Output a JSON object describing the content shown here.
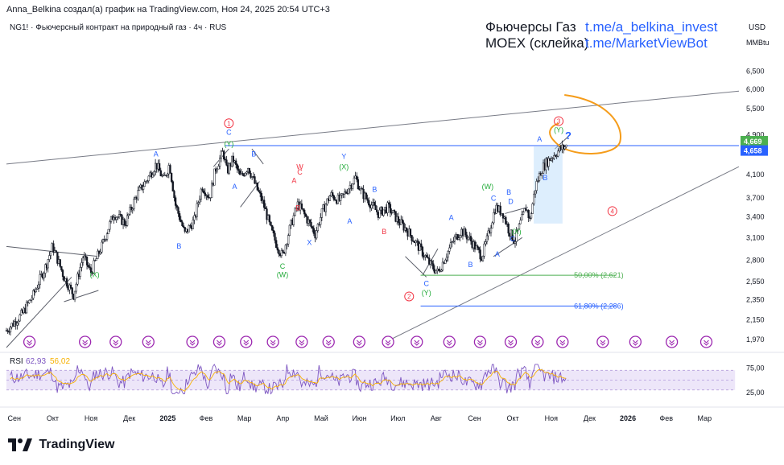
{
  "header": {
    "text": "Anna_Belkina создал(а) график на TradingView.com, Ноя 24, 2025 20:54 UTC+3"
  },
  "symbol": {
    "text": "NG1! · Фьючерсный контракт на природный газ · 4ч · RUS"
  },
  "title": {
    "line1": "Фьючерсы Газ",
    "line2": "MOEX (склейка)",
    "link1": "t.me/a_belkina_invest",
    "link2": "t.me/MarketViewBot"
  },
  "scale": {
    "currency": "USD",
    "unit": "MMBtu"
  },
  "brand": {
    "name": "TradingView"
  },
  "colors": {
    "price": "#131722",
    "wave_blue": "#2962ff",
    "wave_green": "#22ab39",
    "wave_red": "#f23645",
    "rsi": "#7e57c2",
    "rsi_ma": "#f7b100",
    "fib": "#2962ff",
    "fib_green": "#4caf50",
    "ellipse": "#f59c1a",
    "trendline": "#787b86",
    "resistance": "#2962ff"
  },
  "chart_data": {
    "type": "candlestick",
    "price_axis": {
      "scale": "log",
      "ticks": [
        "6,500",
        "6,000",
        "5,500",
        "4,900",
        "4,100",
        "3,700",
        "3,400",
        "3,100",
        "2,800",
        "2,550",
        "2,350",
        "2,150",
        "1,970"
      ],
      "tick_values": [
        6.5,
        6.0,
        5.5,
        4.9,
        4.1,
        3.7,
        3.4,
        3.1,
        2.8,
        2.55,
        2.35,
        2.15,
        1.97
      ],
      "range": [
        1.9,
        7.2
      ]
    },
    "time_axis": {
      "labels": [
        "Сен",
        "Окт",
        "Ноя",
        "Дек",
        "2025",
        "Фев",
        "Мар",
        "Апр",
        "Май",
        "Июн",
        "Июл",
        "Авг",
        "Сен",
        "Окт",
        "Ноя",
        "Дек",
        "2026",
        "Фев",
        "Мар"
      ],
      "bold": [
        "2025",
        "2026"
      ],
      "months_index": [
        0,
        1,
        2,
        3,
        4,
        5,
        6,
        7,
        8,
        9,
        10,
        11,
        12,
        13,
        14,
        15,
        16,
        17,
        18
      ],
      "range_months": [
        -0.1,
        19.0
      ]
    },
    "price_path": [
      {
        "t": -0.1,
        "v": 2.05
      },
      {
        "t": 0.3,
        "v": 2.2
      },
      {
        "t": 0.6,
        "v": 2.4
      },
      {
        "t": 0.9,
        "v": 2.7
      },
      {
        "t": 1.1,
        "v": 2.98
      },
      {
        "t": 1.4,
        "v": 2.6
      },
      {
        "t": 1.65,
        "v": 2.4
      },
      {
        "t": 1.9,
        "v": 2.85
      },
      {
        "t": 2.1,
        "v": 2.65
      },
      {
        "t": 2.4,
        "v": 3.0
      },
      {
        "t": 2.7,
        "v": 3.45
      },
      {
        "t": 3.0,
        "v": 3.3
      },
      {
        "t": 3.3,
        "v": 3.75
      },
      {
        "t": 3.6,
        "v": 4.05
      },
      {
        "t": 3.8,
        "v": 4.3
      },
      {
        "t": 4.0,
        "v": 4.0
      },
      {
        "t": 4.15,
        "v": 4.3
      },
      {
        "t": 4.3,
        "v": 3.6
      },
      {
        "t": 4.55,
        "v": 3.15
      },
      {
        "t": 4.8,
        "v": 3.35
      },
      {
        "t": 5.0,
        "v": 3.9
      },
      {
        "t": 5.2,
        "v": 3.7
      },
      {
        "t": 5.35,
        "v": 4.2
      },
      {
        "t": 5.55,
        "v": 4.55
      },
      {
        "t": 5.65,
        "v": 4.15
      },
      {
        "t": 5.8,
        "v": 4.4
      },
      {
        "t": 6.0,
        "v": 4.05
      },
      {
        "t": 6.2,
        "v": 4.25
      },
      {
        "t": 6.4,
        "v": 3.9
      },
      {
        "t": 6.6,
        "v": 3.6
      },
      {
        "t": 6.8,
        "v": 3.2
      },
      {
        "t": 6.95,
        "v": 3.0
      },
      {
        "t": 7.1,
        "v": 2.85
      },
      {
        "t": 7.3,
        "v": 3.25
      },
      {
        "t": 7.5,
        "v": 3.6
      },
      {
        "t": 7.75,
        "v": 3.35
      },
      {
        "t": 7.95,
        "v": 3.15
      },
      {
        "t": 8.15,
        "v": 3.5
      },
      {
        "t": 8.35,
        "v": 3.75
      },
      {
        "t": 8.6,
        "v": 3.65
      },
      {
        "t": 8.8,
        "v": 3.85
      },
      {
        "t": 9.0,
        "v": 4.05
      },
      {
        "t": 9.15,
        "v": 3.8
      },
      {
        "t": 9.4,
        "v": 3.6
      },
      {
        "t": 9.6,
        "v": 3.45
      },
      {
        "t": 9.85,
        "v": 3.55
      },
      {
        "t": 10.1,
        "v": 3.35
      },
      {
        "t": 10.35,
        "v": 3.2
      },
      {
        "t": 10.55,
        "v": 3.05
      },
      {
        "t": 10.75,
        "v": 2.9
      },
      {
        "t": 10.95,
        "v": 2.75
      },
      {
        "t": 11.15,
        "v": 2.65
      },
      {
        "t": 11.35,
        "v": 2.85
      },
      {
        "t": 11.55,
        "v": 3.05
      },
      {
        "t": 11.75,
        "v": 3.2
      },
      {
        "t": 11.95,
        "v": 3.1
      },
      {
        "t": 12.15,
        "v": 2.95
      },
      {
        "t": 12.3,
        "v": 2.85
      },
      {
        "t": 12.45,
        "v": 3.1
      },
      {
        "t": 12.65,
        "v": 3.55
      },
      {
        "t": 12.85,
        "v": 3.45
      },
      {
        "t": 13.0,
        "v": 3.2
      },
      {
        "t": 13.15,
        "v": 3.05
      },
      {
        "t": 13.3,
        "v": 3.3
      },
      {
        "t": 13.45,
        "v": 3.55
      },
      {
        "t": 13.55,
        "v": 3.35
      },
      {
        "t": 13.7,
        "v": 3.9
      },
      {
        "t": 13.85,
        "v": 4.2
      },
      {
        "t": 14.0,
        "v": 4.35
      },
      {
        "t": 14.2,
        "v": 4.5
      },
      {
        "t": 14.35,
        "v": 4.6
      },
      {
        "t": 14.5,
        "v": 4.66
      }
    ],
    "levels": [
      {
        "name": "resistance",
        "value": 4.669,
        "label": "4,669",
        "color": "#4caf50"
      },
      {
        "name": "last-price",
        "value": 4.658,
        "label": "4,658",
        "color": "#2962ff"
      }
    ],
    "fib_levels": [
      {
        "label": "50,00% (2,621)",
        "value": 2.621
      },
      {
        "label": "61,80% (2,286)",
        "value": 2.286
      }
    ],
    "wave_labels": [
      {
        "text": "(X)",
        "t": 2.2,
        "v": 2.6,
        "color": "green"
      },
      {
        "text": "A",
        "t": 3.8,
        "v": 4.45,
        "color": "blue"
      },
      {
        "text": "B",
        "t": 4.4,
        "v": 2.95,
        "color": "blue"
      },
      {
        "text": "1",
        "t": 5.7,
        "v": 5.1,
        "color": "red",
        "circled": true
      },
      {
        "text": "C",
        "t": 5.7,
        "v": 4.9,
        "color": "blue"
      },
      {
        "text": "(Y)",
        "t": 5.7,
        "v": 4.65,
        "color": "green"
      },
      {
        "text": "B",
        "t": 6.35,
        "v": 4.45,
        "color": "blue"
      },
      {
        "text": "A",
        "t": 5.85,
        "v": 3.85,
        "color": "blue"
      },
      {
        "text": "C",
        "t": 7.1,
        "v": 2.7,
        "color": "green"
      },
      {
        "text": "(W)",
        "t": 7.1,
        "v": 2.6,
        "color": "green"
      },
      {
        "text": "W",
        "t": 7.55,
        "v": 4.2,
        "color": "red"
      },
      {
        "text": "A",
        "t": 7.4,
        "v": 3.95,
        "color": "red"
      },
      {
        "text": "C",
        "t": 7.55,
        "v": 4.1,
        "color": "red"
      },
      {
        "text": "B",
        "t": 7.5,
        "v": 3.5,
        "color": "red"
      },
      {
        "text": "X",
        "t": 7.8,
        "v": 3.0,
        "color": "blue"
      },
      {
        "text": "Y",
        "t": 8.7,
        "v": 4.4,
        "color": "blue"
      },
      {
        "text": "(X)",
        "t": 8.7,
        "v": 4.2,
        "color": "green"
      },
      {
        "text": "A",
        "t": 8.85,
        "v": 3.3,
        "color": "blue"
      },
      {
        "text": "B",
        "t": 9.5,
        "v": 3.8,
        "color": "blue"
      },
      {
        "text": "B",
        "t": 9.75,
        "v": 3.15,
        "color": "red"
      },
      {
        "text": "C",
        "t": 10.85,
        "v": 2.5,
        "color": "blue"
      },
      {
        "text": "(Y)",
        "t": 10.85,
        "v": 2.4,
        "color": "green"
      },
      {
        "text": "2",
        "t": 10.4,
        "v": 2.36,
        "color": "red",
        "circled": true
      },
      {
        "text": "A",
        "t": 11.5,
        "v": 3.35,
        "color": "blue"
      },
      {
        "text": "B",
        "t": 12.0,
        "v": 2.72,
        "color": "blue"
      },
      {
        "text": "(W)",
        "t": 12.45,
        "v": 3.85,
        "color": "green"
      },
      {
        "text": "C",
        "t": 12.6,
        "v": 3.65,
        "color": "blue"
      },
      {
        "text": "D",
        "t": 13.05,
        "v": 3.6,
        "color": "blue"
      },
      {
        "text": "B",
        "t": 13.0,
        "v": 3.75,
        "color": "blue"
      },
      {
        "text": "A",
        "t": 12.7,
        "v": 2.85,
        "color": "blue"
      },
      {
        "text": "C",
        "t": 13.1,
        "v": 3.05,
        "color": "blue"
      },
      {
        "text": "(X)",
        "t": 13.2,
        "v": 3.15,
        "color": "green"
      },
      {
        "text": "A",
        "t": 13.8,
        "v": 4.75,
        "color": "blue"
      },
      {
        "text": "B",
        "t": 13.95,
        "v": 4.0,
        "color": "blue"
      },
      {
        "text": "3",
        "t": 14.3,
        "v": 5.15,
        "color": "red",
        "circled": true
      },
      {
        "text": "(Y)",
        "t": 14.3,
        "v": 4.95,
        "color": "green"
      },
      {
        "text": "?",
        "t": 14.55,
        "v": 4.8,
        "color": "blue"
      },
      {
        "text": "4",
        "t": 15.7,
        "v": 3.45,
        "color": "red",
        "circled": true
      }
    ],
    "trendlines": [
      {
        "from": {
          "t": -0.1,
          "v": 4.3
        },
        "to": {
          "t": 19.0,
          "v": 5.95
        }
      },
      {
        "from": {
          "t": 9.8,
          "v": 1.95
        },
        "to": {
          "t": 19.0,
          "v": 4.25
        }
      }
    ],
    "rsi": {
      "label": "RSI",
      "value": "62,93",
      "ma_value": "56,02",
      "ticks": [
        "75,00",
        "25,00"
      ],
      "upper": 70,
      "lower": 30
    }
  }
}
